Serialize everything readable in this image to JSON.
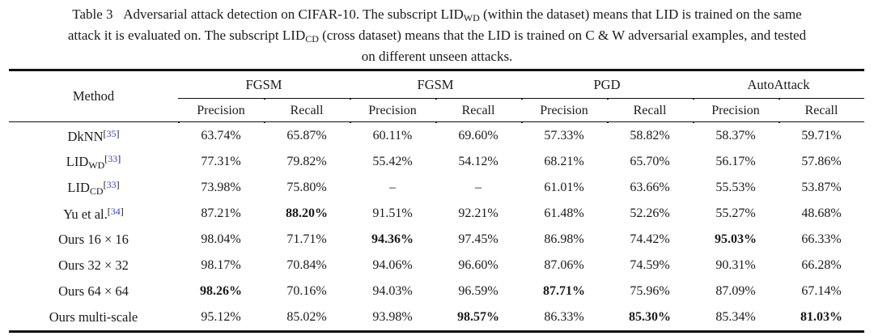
{
  "caption": {
    "lines": [
      [
        {
          "t": "Table 3   Adversarial attack detection on CIFAR-10. The subscript LID"
        },
        {
          "t": "WD",
          "s": "sub"
        },
        {
          "t": " (within the dataset) means that LID is trained on the same"
        }
      ],
      [
        {
          "t": "attack it is evaluated on. The subscript LID"
        },
        {
          "t": "CD",
          "s": "sub"
        },
        {
          "t": " (cross dataset) means that the LID is trained on C & W adversarial examples, and tested"
        }
      ],
      [
        {
          "t": "on different unseen attacks."
        }
      ]
    ]
  },
  "table": {
    "method_header": "Method",
    "groups": [
      "FGSM",
      "FGSM",
      "PGD",
      "AutoAttack"
    ],
    "sub_headers": [
      "Precision",
      "Recall"
    ],
    "rows": [
      {
        "method": [
          {
            "t": "DkNN"
          },
          {
            "t": "[",
            "s": "sup"
          },
          {
            "t": "35",
            "s": "cite"
          },
          {
            "t": "]",
            "s": "sup"
          }
        ],
        "values": [
          {
            "v": "63.74%"
          },
          {
            "v": "65.87%"
          },
          {
            "v": "60.11%"
          },
          {
            "v": "69.60%"
          },
          {
            "v": "57.33%"
          },
          {
            "v": "58.82%"
          },
          {
            "v": "58.37%"
          },
          {
            "v": "59.71%"
          }
        ]
      },
      {
        "method": [
          {
            "t": "LID"
          },
          {
            "t": "WD",
            "s": "sub"
          },
          {
            "t": "[",
            "s": "sup"
          },
          {
            "t": "33",
            "s": "cite"
          },
          {
            "t": "]",
            "s": "sup"
          }
        ],
        "values": [
          {
            "v": "77.31%"
          },
          {
            "v": "79.82%"
          },
          {
            "v": "55.42%"
          },
          {
            "v": "54.12%"
          },
          {
            "v": "68.21%"
          },
          {
            "v": "65.70%"
          },
          {
            "v": "56.17%"
          },
          {
            "v": "57.86%"
          }
        ]
      },
      {
        "method": [
          {
            "t": "LID"
          },
          {
            "t": "CD",
            "s": "sub"
          },
          {
            "t": "[",
            "s": "sup"
          },
          {
            "t": "33",
            "s": "cite"
          },
          {
            "t": "]",
            "s": "sup"
          }
        ],
        "values": [
          {
            "v": "73.98%"
          },
          {
            "v": "75.80%"
          },
          {
            "v": "–"
          },
          {
            "v": "–"
          },
          {
            "v": "61.01%"
          },
          {
            "v": "63.66%"
          },
          {
            "v": "55.53%"
          },
          {
            "v": "53.87%"
          }
        ]
      },
      {
        "method": [
          {
            "t": "Yu et al."
          },
          {
            "t": "[",
            "s": "sup"
          },
          {
            "t": "34",
            "s": "cite"
          },
          {
            "t": "]",
            "s": "sup"
          }
        ],
        "values": [
          {
            "v": "87.21%"
          },
          {
            "v": "88.20%",
            "b": true
          },
          {
            "v": "91.51%"
          },
          {
            "v": "92.21%"
          },
          {
            "v": "61.48%"
          },
          {
            "v": "52.26%"
          },
          {
            "v": "55.27%"
          },
          {
            "v": "48.68%"
          }
        ]
      },
      {
        "method": [
          {
            "t": "Ours 16 × 16"
          }
        ],
        "values": [
          {
            "v": "98.04%"
          },
          {
            "v": "71.71%"
          },
          {
            "v": "94.36%",
            "b": true
          },
          {
            "v": "97.45%"
          },
          {
            "v": "86.98%"
          },
          {
            "v": "74.42%"
          },
          {
            "v": "95.03%",
            "b": true
          },
          {
            "v": "66.33%"
          }
        ]
      },
      {
        "method": [
          {
            "t": "Ours 32 × 32"
          }
        ],
        "values": [
          {
            "v": "98.17%"
          },
          {
            "v": "70.84%"
          },
          {
            "v": "94.06%"
          },
          {
            "v": "96.60%"
          },
          {
            "v": "87.06%"
          },
          {
            "v": "74.59%"
          },
          {
            "v": "90.31%"
          },
          {
            "v": "66.28%"
          }
        ]
      },
      {
        "method": [
          {
            "t": "Ours 64 × 64"
          }
        ],
        "values": [
          {
            "v": "98.26%",
            "b": true
          },
          {
            "v": "70.16%"
          },
          {
            "v": "94.03%"
          },
          {
            "v": "96.59%"
          },
          {
            "v": "87.71%",
            "b": true
          },
          {
            "v": "75.96%"
          },
          {
            "v": "87.09%"
          },
          {
            "v": "67.14%"
          }
        ]
      },
      {
        "method": [
          {
            "t": "Ours multi-scale"
          }
        ],
        "values": [
          {
            "v": "95.12%"
          },
          {
            "v": "85.02%"
          },
          {
            "v": "93.98%"
          },
          {
            "v": "98.57%",
            "b": true
          },
          {
            "v": "86.33%"
          },
          {
            "v": "85.30%",
            "b": true
          },
          {
            "v": "85.34%"
          },
          {
            "v": "81.03%",
            "b": true
          }
        ]
      }
    ]
  },
  "colors": {
    "citation": "#3845c4",
    "text": "#1a1a1a",
    "rule": "#111111"
  }
}
